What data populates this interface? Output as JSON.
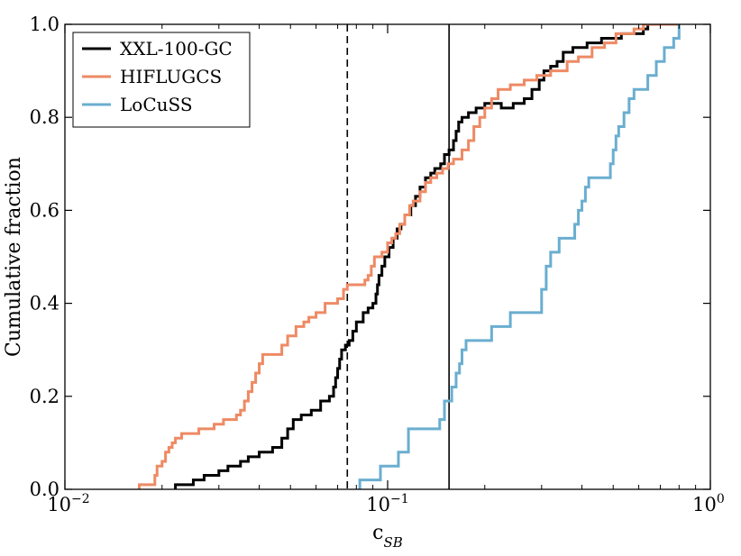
{
  "chart_data": {
    "type": "line",
    "subtype": "cumulative-step",
    "title": "",
    "xlabel": "c",
    "xlabel_subscript": "SB",
    "ylabel": "Cumulative fraction",
    "xscale": "log",
    "xlim": [
      0.01,
      1.0
    ],
    "ylim": [
      0.0,
      1.0
    ],
    "x_ticks": [
      {
        "value": 0.01,
        "base": "10",
        "exp": "−2"
      },
      {
        "value": 0.1,
        "base": "10",
        "exp": "−1"
      },
      {
        "value": 1.0,
        "base": "10",
        "exp": "0"
      }
    ],
    "y_ticks": [
      "0.0",
      "0.2",
      "0.4",
      "0.6",
      "0.8",
      "1.0"
    ],
    "grid": false,
    "legend_position": "top-left",
    "vertical_lines": [
      {
        "x": 0.075,
        "style": "dashed",
        "color": "#000000"
      },
      {
        "x": 0.155,
        "style": "solid",
        "color": "#000000"
      }
    ],
    "series": [
      {
        "name": "XXL-100-GC",
        "color": "#000000",
        "points": [
          [
            0.022,
            0.0
          ],
          [
            0.022,
            0.01
          ],
          [
            0.025,
            0.02
          ],
          [
            0.027,
            0.03
          ],
          [
            0.03,
            0.04
          ],
          [
            0.032,
            0.05
          ],
          [
            0.035,
            0.06
          ],
          [
            0.037,
            0.07
          ],
          [
            0.04,
            0.08
          ],
          [
            0.044,
            0.09
          ],
          [
            0.047,
            0.11
          ],
          [
            0.049,
            0.13
          ],
          [
            0.051,
            0.15
          ],
          [
            0.054,
            0.16
          ],
          [
            0.058,
            0.17
          ],
          [
            0.062,
            0.19
          ],
          [
            0.066,
            0.2
          ],
          [
            0.068,
            0.22
          ],
          [
            0.069,
            0.24
          ],
          [
            0.07,
            0.26
          ],
          [
            0.071,
            0.28
          ],
          [
            0.072,
            0.3
          ],
          [
            0.074,
            0.31
          ],
          [
            0.076,
            0.32
          ],
          [
            0.078,
            0.34
          ],
          [
            0.08,
            0.36
          ],
          [
            0.084,
            0.38
          ],
          [
            0.087,
            0.39
          ],
          [
            0.09,
            0.4
          ],
          [
            0.092,
            0.42
          ],
          [
            0.093,
            0.44
          ],
          [
            0.094,
            0.46
          ],
          [
            0.096,
            0.48
          ],
          [
            0.098,
            0.5
          ],
          [
            0.101,
            0.52
          ],
          [
            0.104,
            0.54
          ],
          [
            0.107,
            0.56
          ],
          [
            0.11,
            0.57
          ],
          [
            0.113,
            0.59
          ],
          [
            0.118,
            0.61
          ],
          [
            0.122,
            0.63
          ],
          [
            0.126,
            0.65
          ],
          [
            0.131,
            0.67
          ],
          [
            0.136,
            0.68
          ],
          [
            0.14,
            0.69
          ],
          [
            0.146,
            0.7
          ],
          [
            0.15,
            0.72
          ],
          [
            0.155,
            0.73
          ],
          [
            0.16,
            0.75
          ],
          [
            0.163,
            0.77
          ],
          [
            0.166,
            0.79
          ],
          [
            0.17,
            0.8
          ],
          [
            0.178,
            0.81
          ],
          [
            0.188,
            0.82
          ],
          [
            0.2,
            0.83
          ],
          [
            0.225,
            0.82
          ],
          [
            0.245,
            0.83
          ],
          [
            0.265,
            0.84
          ],
          [
            0.28,
            0.86
          ],
          [
            0.295,
            0.88
          ],
          [
            0.305,
            0.9
          ],
          [
            0.32,
            0.91
          ],
          [
            0.335,
            0.92
          ],
          [
            0.35,
            0.94
          ],
          [
            0.375,
            0.95
          ],
          [
            0.415,
            0.96
          ],
          [
            0.46,
            0.97
          ],
          [
            0.53,
            0.98
          ],
          [
            0.62,
            0.99
          ],
          [
            0.64,
            1.0
          ],
          [
            0.7,
            1.0
          ]
        ]
      },
      {
        "name": "HIFLUGCS",
        "color": "#EE8A64",
        "points": [
          [
            0.017,
            0.0
          ],
          [
            0.017,
            0.01
          ],
          [
            0.019,
            0.03
          ],
          [
            0.0193,
            0.05
          ],
          [
            0.02,
            0.06
          ],
          [
            0.0205,
            0.08
          ],
          [
            0.021,
            0.09
          ],
          [
            0.0215,
            0.1
          ],
          [
            0.022,
            0.11
          ],
          [
            0.023,
            0.12
          ],
          [
            0.026,
            0.13
          ],
          [
            0.029,
            0.14
          ],
          [
            0.031,
            0.15
          ],
          [
            0.034,
            0.16
          ],
          [
            0.035,
            0.17
          ],
          [
            0.036,
            0.19
          ],
          [
            0.037,
            0.21
          ],
          [
            0.038,
            0.23
          ],
          [
            0.039,
            0.25
          ],
          [
            0.04,
            0.27
          ],
          [
            0.041,
            0.29
          ],
          [
            0.047,
            0.31
          ],
          [
            0.049,
            0.33
          ],
          [
            0.052,
            0.35
          ],
          [
            0.055,
            0.36
          ],
          [
            0.057,
            0.37
          ],
          [
            0.06,
            0.38
          ],
          [
            0.064,
            0.4
          ],
          [
            0.07,
            0.41
          ],
          [
            0.073,
            0.43
          ],
          [
            0.075,
            0.44
          ],
          [
            0.085,
            0.45
          ],
          [
            0.087,
            0.46
          ],
          [
            0.089,
            0.48
          ],
          [
            0.091,
            0.5
          ],
          [
            0.096,
            0.51
          ],
          [
            0.1,
            0.53
          ],
          [
            0.103,
            0.54
          ],
          [
            0.106,
            0.55
          ],
          [
            0.109,
            0.57
          ],
          [
            0.113,
            0.59
          ],
          [
            0.117,
            0.61
          ],
          [
            0.12,
            0.62
          ],
          [
            0.126,
            0.64
          ],
          [
            0.131,
            0.66
          ],
          [
            0.136,
            0.67
          ],
          [
            0.142,
            0.68
          ],
          [
            0.148,
            0.69
          ],
          [
            0.154,
            0.7
          ],
          [
            0.16,
            0.71
          ],
          [
            0.17,
            0.73
          ],
          [
            0.178,
            0.75
          ],
          [
            0.185,
            0.78
          ],
          [
            0.193,
            0.8
          ],
          [
            0.2,
            0.82
          ],
          [
            0.21,
            0.84
          ],
          [
            0.22,
            0.86
          ],
          [
            0.24,
            0.87
          ],
          [
            0.265,
            0.88
          ],
          [
            0.29,
            0.89
          ],
          [
            0.32,
            0.9
          ],
          [
            0.36,
            0.92
          ],
          [
            0.39,
            0.93
          ],
          [
            0.43,
            0.95
          ],
          [
            0.47,
            0.96
          ],
          [
            0.51,
            0.98
          ],
          [
            0.58,
            0.99
          ],
          [
            0.62,
            1.0
          ],
          [
            0.8,
            1.0
          ]
        ]
      },
      {
        "name": "LoCuSS",
        "color": "#6AAED0",
        "points": [
          [
            0.082,
            0.0
          ],
          [
            0.082,
            0.02
          ],
          [
            0.095,
            0.05
          ],
          [
            0.108,
            0.08
          ],
          [
            0.116,
            0.13
          ],
          [
            0.145,
            0.15
          ],
          [
            0.15,
            0.19
          ],
          [
            0.158,
            0.22
          ],
          [
            0.163,
            0.25
          ],
          [
            0.167,
            0.27
          ],
          [
            0.17,
            0.3
          ],
          [
            0.175,
            0.32
          ],
          [
            0.21,
            0.35
          ],
          [
            0.24,
            0.38
          ],
          [
            0.3,
            0.43
          ],
          [
            0.31,
            0.48
          ],
          [
            0.32,
            0.51
          ],
          [
            0.34,
            0.54
          ],
          [
            0.38,
            0.57
          ],
          [
            0.39,
            0.6
          ],
          [
            0.4,
            0.62
          ],
          [
            0.41,
            0.65
          ],
          [
            0.42,
            0.67
          ],
          [
            0.49,
            0.7
          ],
          [
            0.5,
            0.73
          ],
          [
            0.51,
            0.76
          ],
          [
            0.52,
            0.78
          ],
          [
            0.54,
            0.81
          ],
          [
            0.56,
            0.84
          ],
          [
            0.58,
            0.86
          ],
          [
            0.64,
            0.89
          ],
          [
            0.68,
            0.92
          ],
          [
            0.72,
            0.95
          ],
          [
            0.77,
            0.97
          ],
          [
            0.8,
            1.0
          ]
        ]
      }
    ]
  }
}
